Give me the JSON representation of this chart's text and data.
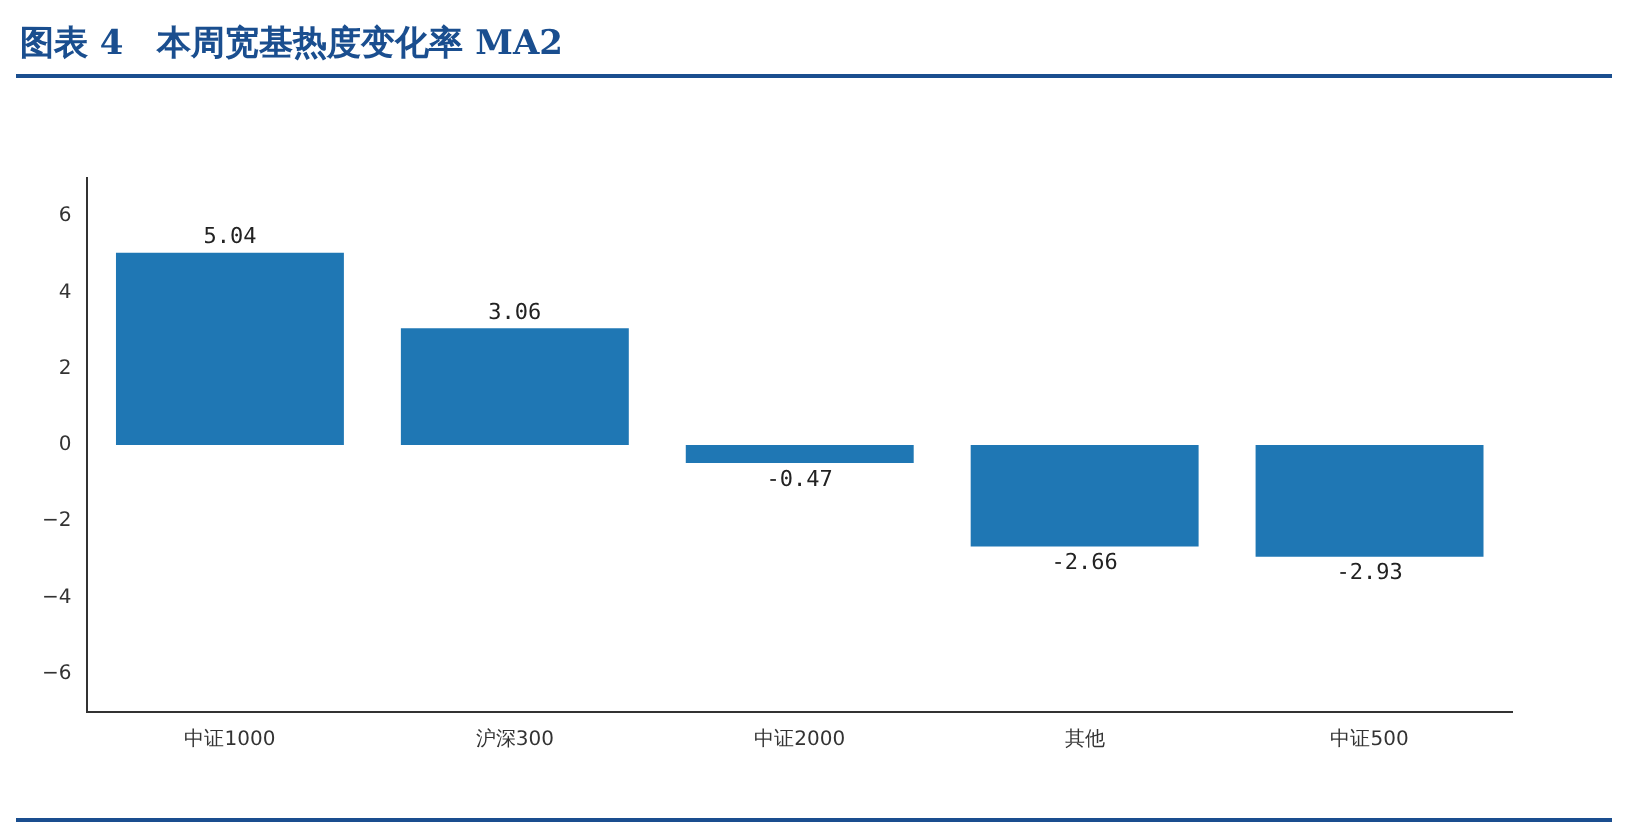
{
  "chart_data": {
    "type": "bar",
    "title": "图表 4　本周宽基热度变化率 MA2",
    "categories": [
      "中证1000",
      "沪深300",
      "中证2000",
      "其他",
      "中证500"
    ],
    "values": [
      5.04,
      3.06,
      -0.47,
      -2.66,
      -2.93
    ],
    "color": "#1f77b4",
    "ylim": [
      -7,
      7
    ],
    "yticks": [
      {
        "value": -6,
        "label": "−6"
      },
      {
        "value": -4,
        "label": "−4"
      },
      {
        "value": -2,
        "label": "−2"
      },
      0,
      2,
      4,
      6
    ],
    "data_labels": true,
    "grid": false,
    "legend": false
  }
}
